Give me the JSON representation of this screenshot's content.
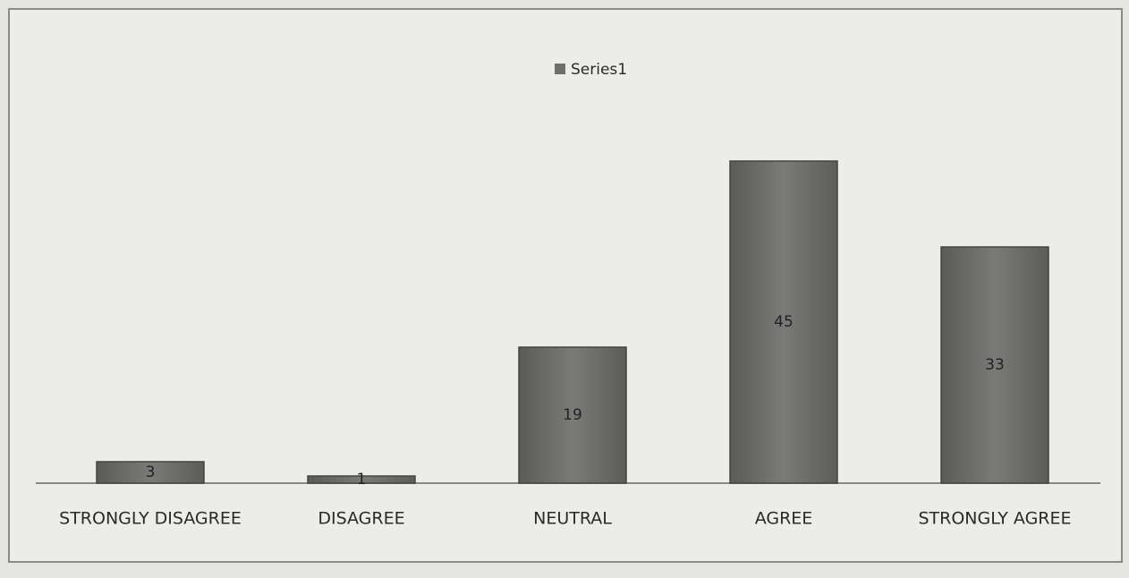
{
  "chart_data": {
    "type": "bar",
    "categories": [
      "STRONGLY DISAGREE",
      "DISAGREE",
      "NEUTRAL",
      "AGREE",
      "STRONGLY AGREE"
    ],
    "series": [
      {
        "name": "Series1",
        "color": "#6e6e6c",
        "values": [
          3,
          1,
          19,
          45,
          33
        ]
      }
    ],
    "legend": "top"
  }
}
